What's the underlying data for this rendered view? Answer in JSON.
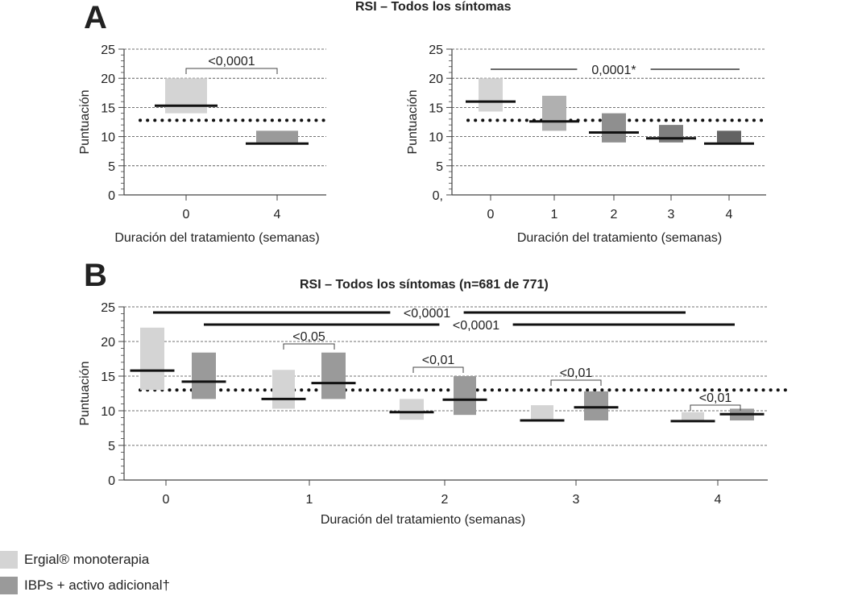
{
  "panels": {
    "a_letter": "A",
    "b_letter": "B"
  },
  "legend": {
    "items": [
      {
        "label": "Ergial® monoterapia",
        "color": "#d4d4d4"
      },
      {
        "label": "IBPs + activo adicional†",
        "color": "#9a9a9a"
      }
    ]
  },
  "chart_data": [
    {
      "type": "bar",
      "title": "RSI – Todos los síntomas",
      "ylabel": "Puntuación",
      "xlabel": "Duración del tratamiento (semanas)",
      "categories": [
        "0",
        "4"
      ],
      "ylim": [
        0,
        25
      ],
      "yticks": [
        "0",
        "5",
        "10",
        "15",
        "20",
        "25"
      ],
      "reference_line": 12.8,
      "bars": [
        {
          "x": "0",
          "low": 14.0,
          "high": 20.0,
          "median": 15.3,
          "color": "#d4d4d4"
        },
        {
          "x": "4",
          "low": 9.0,
          "high": 11.0,
          "median": 8.8,
          "color": "#9a9a9a"
        }
      ],
      "annotations": [
        {
          "text": "<0,0001",
          "from": "0",
          "to": "4"
        }
      ]
    },
    {
      "type": "bar",
      "ylabel": "Puntuación",
      "xlabel": "Duración del tratamiento (semanas)",
      "categories": [
        "0",
        "1",
        "2",
        "3",
        "4"
      ],
      "ylim": [
        0,
        25
      ],
      "yticks": [
        "0,",
        "5",
        "10",
        "15",
        "20",
        "25"
      ],
      "reference_line": 12.8,
      "bars": [
        {
          "x": "0",
          "low": 14.3,
          "high": 20.0,
          "median": 16.0,
          "color": "#d4d4d4"
        },
        {
          "x": "1",
          "low": 11.0,
          "high": 17.0,
          "median": 12.6,
          "color": "#b0b0b0"
        },
        {
          "x": "2",
          "low": 9.0,
          "high": 14.0,
          "median": 10.7,
          "color": "#8f8f8f"
        },
        {
          "x": "3",
          "low": 9.0,
          "high": 12.0,
          "median": 9.7,
          "color": "#7e7e7e"
        },
        {
          "x": "4",
          "low": 9.0,
          "high": 11.0,
          "median": 8.8,
          "color": "#636363"
        }
      ],
      "annotations": [
        {
          "text": "0,0001*",
          "from": "0",
          "to": "4"
        }
      ]
    },
    {
      "type": "bar",
      "title": "RSI – Todos los síntomas (n=681 de 771)",
      "ylabel": "Puntuación",
      "xlabel": "Duración del tratamiento (semanas)",
      "categories": [
        "0",
        "1",
        "2",
        "3",
        "4"
      ],
      "ylim": [
        0,
        25
      ],
      "yticks": [
        "0",
        "5",
        "10",
        "15",
        "20",
        "25"
      ],
      "reference_line": 13.0,
      "series": [
        {
          "name": "Ergial® monoterapia",
          "color": "#d4d4d4",
          "low": [
            13.0,
            10.3,
            8.7,
            8.7,
            8.6
          ],
          "high": [
            22.0,
            15.9,
            11.7,
            10.8,
            9.8
          ],
          "median": [
            15.8,
            11.7,
            9.8,
            8.6,
            8.5
          ]
        },
        {
          "name": "IBPs + activo adicional†",
          "color": "#9a9a9a",
          "low": [
            11.7,
            11.7,
            9.4,
            8.6,
            8.6
          ],
          "high": [
            18.4,
            18.4,
            15.0,
            12.8,
            10.3
          ],
          "median": [
            14.2,
            14.0,
            11.6,
            10.5,
            9.5
          ]
        }
      ],
      "annotations": [
        {
          "text": "<0,05",
          "category": "1"
        },
        {
          "text": "<0,01",
          "category": "2"
        },
        {
          "text": "<0,01",
          "category": "3"
        },
        {
          "text": "<0,01",
          "category": "4"
        }
      ],
      "long_annotations": [
        {
          "text": "<0,0001",
          "from": "0",
          "to": "4"
        },
        {
          "text": "<0,0001",
          "from": "0",
          "to": "4"
        }
      ]
    }
  ]
}
